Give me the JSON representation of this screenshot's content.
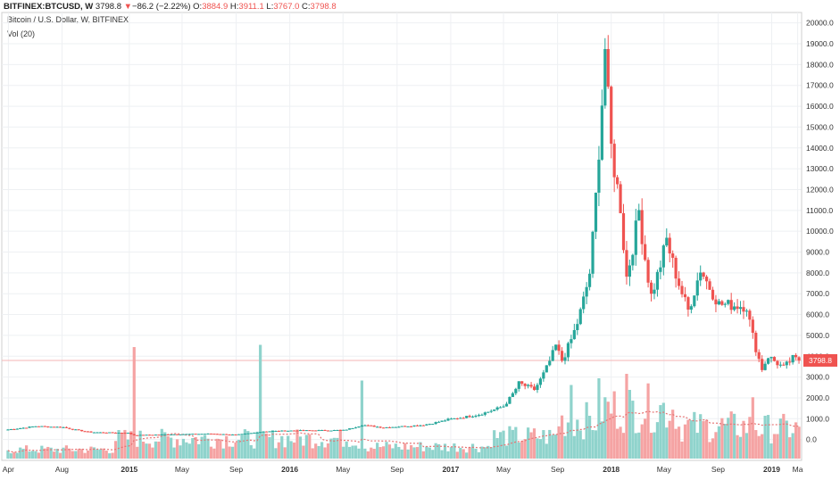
{
  "header": {
    "symbol": "BITFINEX:BTCUSD, W",
    "last": "3798.8",
    "change": "−86.2 (−2.22%)",
    "o_label": "O:",
    "o": "3884.9",
    "h_label": "H:",
    "h": "3911.1",
    "l_label": "L:",
    "l": "3767.0",
    "c_label": "C:",
    "c": "3798.8",
    "down_arrow": "▼"
  },
  "subtitle": "Bitcoin / U.S. Dollar, W, BITFINEX",
  "volume_label": "Vol (20)",
  "colors": {
    "up": "#26a69a",
    "down": "#ef5350",
    "vol_up": "#8fd3cc",
    "vol_down": "#f5a3a3",
    "last_line": "#f6b5b5"
  },
  "chart_data": {
    "type": "candlestick",
    "title": "Bitcoin / U.S. Dollar, W, BITFINEX",
    "price_axis": {
      "ylim": [
        -1000,
        20500
      ],
      "ticks": [
        0,
        1000,
        2000,
        3000,
        4000,
        5000,
        6000,
        7000,
        8000,
        9000,
        10000,
        11000,
        12000,
        13000,
        14000,
        15000,
        16000,
        17000,
        18000,
        19000,
        20000
      ],
      "tick_labels": [
        "0.0",
        "1000.0",
        "2000.0",
        "3000.0",
        "4000.0",
        "5000.0",
        "6000.0",
        "7000.0",
        "8000.0",
        "9000.0",
        "10000.0",
        "11000.0",
        "12000.0",
        "13000.0",
        "14000.0",
        "15000.0",
        "16000.0",
        "17000.0",
        "18000.0",
        "19000.0",
        "20000.0"
      ]
    },
    "last_price": 3798.8,
    "last_price_label": "3798.8",
    "x_axis": {
      "start": "2014-03-17",
      "end": "2019-03-10",
      "ticks": [
        {
          "date": "2014-04-01",
          "label": "Apr",
          "bold": false
        },
        {
          "date": "2014-08-01",
          "label": "Aug",
          "bold": false
        },
        {
          "date": "2015-01-01",
          "label": "2015",
          "bold": true
        },
        {
          "date": "2015-05-01",
          "label": "May",
          "bold": false
        },
        {
          "date": "2015-09-01",
          "label": "Sep",
          "bold": false
        },
        {
          "date": "2016-01-01",
          "label": "2016",
          "bold": true
        },
        {
          "date": "2016-05-01",
          "label": "May",
          "bold": false
        },
        {
          "date": "2016-09-01",
          "label": "Sep",
          "bold": false
        },
        {
          "date": "2017-01-01",
          "label": "2017",
          "bold": true
        },
        {
          "date": "2017-05-01",
          "label": "May",
          "bold": false
        },
        {
          "date": "2017-09-01",
          "label": "Sep",
          "bold": false
        },
        {
          "date": "2018-01-01",
          "label": "2018",
          "bold": true
        },
        {
          "date": "2018-05-01",
          "label": "May",
          "bold": false
        },
        {
          "date": "2018-09-01",
          "label": "Sep",
          "bold": false
        },
        {
          "date": "2019-01-01",
          "label": "2019",
          "bold": true
        },
        {
          "date": "2019-03-01",
          "label": "Ma",
          "bold": false
        }
      ]
    },
    "ohlc_anchors": [
      {
        "date": "2014-03-31",
        "price": 480
      },
      {
        "date": "2014-06-02",
        "price": 640
      },
      {
        "date": "2014-08-04",
        "price": 590
      },
      {
        "date": "2014-10-06",
        "price": 350
      },
      {
        "date": "2014-12-29",
        "price": 320
      },
      {
        "date": "2015-01-12",
        "price": 210
      },
      {
        "date": "2015-04-06",
        "price": 250
      },
      {
        "date": "2015-07-06",
        "price": 280
      },
      {
        "date": "2015-08-31",
        "price": 230
      },
      {
        "date": "2015-11-02",
        "price": 390
      },
      {
        "date": "2016-01-04",
        "price": 430
      },
      {
        "date": "2016-05-02",
        "price": 450
      },
      {
        "date": "2016-06-13",
        "price": 700
      },
      {
        "date": "2016-08-01",
        "price": 580
      },
      {
        "date": "2016-10-31",
        "price": 700
      },
      {
        "date": "2016-12-26",
        "price": 960
      },
      {
        "date": "2017-03-06",
        "price": 1200
      },
      {
        "date": "2017-05-01",
        "price": 1600
      },
      {
        "date": "2017-06-05",
        "price": 2700
      },
      {
        "date": "2017-07-10",
        "price": 2400
      },
      {
        "date": "2017-08-28",
        "price": 4500
      },
      {
        "date": "2017-09-11",
        "price": 3800
      },
      {
        "date": "2017-10-16",
        "price": 5600
      },
      {
        "date": "2017-11-13",
        "price": 8000
      },
      {
        "date": "2017-12-04",
        "price": 14000
      },
      {
        "date": "2017-12-18",
        "price": 18800
      },
      {
        "date": "2018-01-01",
        "price": 14000
      },
      {
        "date": "2018-01-22",
        "price": 11200
      },
      {
        "date": "2018-02-05",
        "price": 7800
      },
      {
        "date": "2018-03-05",
        "price": 11000
      },
      {
        "date": "2018-04-02",
        "price": 6900
      },
      {
        "date": "2018-05-07",
        "price": 9600
      },
      {
        "date": "2018-06-25",
        "price": 6200
      },
      {
        "date": "2018-07-23",
        "price": 8200
      },
      {
        "date": "2018-09-03",
        "price": 6500
      },
      {
        "date": "2018-11-05",
        "price": 6400
      },
      {
        "date": "2018-12-10",
        "price": 3400
      },
      {
        "date": "2018-12-24",
        "price": 4000
      },
      {
        "date": "2019-01-28",
        "price": 3450
      },
      {
        "date": "2019-02-18",
        "price": 3900
      },
      {
        "date": "2019-03-04",
        "price": 3798.8
      }
    ],
    "volume_axis_note": "volume pane shown without its own scale",
    "volume_spikes": [
      {
        "date": "2015-01-12",
        "relative": 1.0
      },
      {
        "date": "2015-10-26",
        "relative": 1.02
      },
      {
        "date": "2016-06-13",
        "relative": 0.7
      },
      {
        "date": "2017-12-04",
        "relative": 0.72
      },
      {
        "date": "2018-02-05",
        "relative": 0.76
      },
      {
        "date": "2017-10-02",
        "relative": 0.66
      },
      {
        "date": "2018-11-19",
        "relative": 0.55
      }
    ]
  }
}
